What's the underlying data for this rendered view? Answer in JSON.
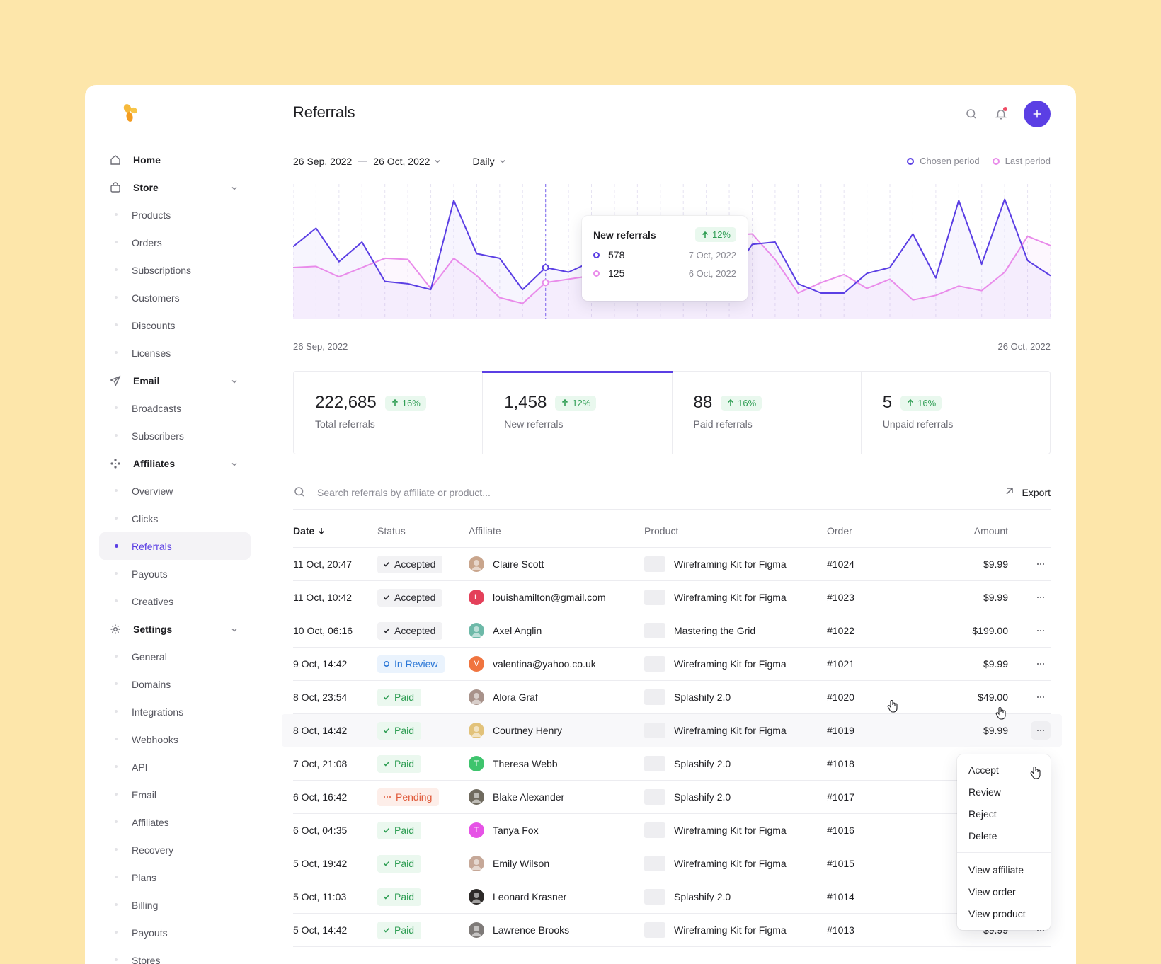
{
  "page": {
    "title": "Referrals"
  },
  "colors": {
    "accent": "#5b3fe4",
    "last_period": "#e98bea",
    "paid": "#2f9e54",
    "review": "#2b77d6",
    "pending": "#e05a3a"
  },
  "sidebar": {
    "groups": [
      {
        "label": "Home",
        "icon": "home-icon",
        "items": []
      },
      {
        "label": "Store",
        "icon": "bag-icon",
        "items": [
          "Products",
          "Orders",
          "Subscriptions",
          "Customers",
          "Discounts",
          "Licenses"
        ]
      },
      {
        "label": "Email",
        "icon": "send-icon",
        "items": [
          "Broadcasts",
          "Subscribers"
        ]
      },
      {
        "label": "Affiliates",
        "icon": "affiliates-icon",
        "items": [
          "Overview",
          "Clicks",
          "Referrals",
          "Payouts",
          "Creatives"
        ]
      },
      {
        "label": "Settings",
        "icon": "gear-icon",
        "items": [
          "General",
          "Domains",
          "Integrations",
          "Webhooks",
          "API",
          "Email",
          "Affiliates",
          "Recovery",
          "Plans",
          "Billing",
          "Payouts",
          "Stores"
        ]
      }
    ],
    "active_item": "Referrals"
  },
  "filters": {
    "date_from": "26 Sep, 2022",
    "date_to": "26 Oct, 2022",
    "interval": "Daily"
  },
  "legend": {
    "chosen": "Chosen period",
    "last": "Last period"
  },
  "chart_data": {
    "type": "line",
    "x_start_label": "26 Sep, 2022",
    "x_end_label": "26 Oct, 2022",
    "series": [
      {
        "name": "Chosen period",
        "values": [
          62,
          78,
          49,
          66,
          32,
          30,
          25,
          102,
          56,
          52,
          25,
          44,
          40,
          49,
          48,
          48,
          54,
          34,
          32,
          34,
          64,
          66,
          30,
          22,
          22,
          39,
          44,
          73,
          35,
          102,
          47,
          103,
          50,
          37
        ]
      },
      {
        "name": "Last period",
        "values": [
          44,
          45,
          36,
          44,
          52,
          51,
          26,
          52,
          37,
          18,
          13,
          31,
          34,
          37,
          55,
          59,
          64,
          52,
          59,
          72,
          73,
          51,
          22,
          31,
          38,
          26,
          34,
          16,
          20,
          28,
          24,
          40,
          71,
          63
        ]
      }
    ]
  },
  "tooltip": {
    "title": "New referrals",
    "change": "12%",
    "rows": [
      {
        "value": "578",
        "date": "7 Oct, 2022"
      },
      {
        "value": "125",
        "date": "6 Oct, 2022"
      }
    ]
  },
  "stats": [
    {
      "value": "222,685",
      "change": "16%",
      "label": "Total referrals"
    },
    {
      "value": "1,458",
      "change": "12%",
      "label": "New referrals"
    },
    {
      "value": "88",
      "change": "16%",
      "label": "Paid referrals"
    },
    {
      "value": "5",
      "change": "16%",
      "label": "Unpaid referrals"
    }
  ],
  "search": {
    "placeholder": "Search referrals by affiliate or product..."
  },
  "export_label": "Export",
  "table": {
    "headers": {
      "date": "Date",
      "status": "Status",
      "affiliate": "Affiliate",
      "product": "Product",
      "order": "Order",
      "amount": "Amount"
    },
    "rows": [
      {
        "date": "11 Oct, 20:47",
        "status": "Accepted",
        "status_type": "accepted",
        "affiliate": "Claire Scott",
        "avatar": "photo",
        "avatar_color": "#c9a58c",
        "product": "Wireframing Kit for Figma",
        "order": "#1024",
        "amount": "$9.99"
      },
      {
        "date": "11 Oct, 10:42",
        "status": "Accepted",
        "status_type": "accepted",
        "affiliate": "louishamilton@gmail.com",
        "avatar": "L",
        "avatar_color": "#e4405a",
        "product": "Wireframing Kit for Figma",
        "order": "#1023",
        "amount": "$9.99"
      },
      {
        "date": "10 Oct, 06:16",
        "status": "Accepted",
        "status_type": "accepted",
        "affiliate": "Axel Anglin",
        "avatar": "photo",
        "avatar_color": "#6db9a8",
        "product": "Mastering the Grid",
        "order": "#1022",
        "amount": "$199.00"
      },
      {
        "date": "9 Oct, 14:42",
        "status": "In Review",
        "status_type": "review",
        "affiliate": "valentina@yahoo.co.uk",
        "avatar": "V",
        "avatar_color": "#f0743f",
        "product": "Wireframing Kit for Figma",
        "order": "#1021",
        "amount": "$9.99"
      },
      {
        "date": "8 Oct, 23:54",
        "status": "Paid",
        "status_type": "paid",
        "affiliate": "Alora Graf",
        "avatar": "photo",
        "avatar_color": "#a8928a",
        "product": "Splashify 2.0",
        "order": "#1020",
        "amount": "$49.00"
      },
      {
        "date": "8 Oct, 14:42",
        "status": "Paid",
        "status_type": "paid",
        "affiliate": "Courtney Henry",
        "avatar": "photo",
        "avatar_color": "#e2c27a",
        "product": "Wireframing Kit for Figma",
        "order": "#1019",
        "amount": "$9.99",
        "hover": true
      },
      {
        "date": "7 Oct, 21:08",
        "status": "Paid",
        "status_type": "paid",
        "affiliate": "Theresa Webb",
        "avatar": "T",
        "avatar_color": "#3ec46d",
        "product": "Splashify 2.0",
        "order": "#1018",
        "amount": ""
      },
      {
        "date": "6 Oct, 16:42",
        "status": "Pending",
        "status_type": "pending",
        "affiliate": "Blake Alexander",
        "avatar": "photo",
        "avatar_color": "#6f6a5e",
        "product": "Splashify 2.0",
        "order": "#1017",
        "amount": ""
      },
      {
        "date": "6 Oct, 04:35",
        "status": "Paid",
        "status_type": "paid",
        "affiliate": "Tanya Fox",
        "avatar": "T",
        "avatar_color": "#e653e6",
        "product": "Wireframing Kit for Figma",
        "order": "#1016",
        "amount": ""
      },
      {
        "date": "5 Oct, 19:42",
        "status": "Paid",
        "status_type": "paid",
        "affiliate": "Emily Wilson",
        "avatar": "photo",
        "avatar_color": "#c6a898",
        "product": "Wireframing Kit for Figma",
        "order": "#1015",
        "amount": ""
      },
      {
        "date": "5 Oct, 11:03",
        "status": "Paid",
        "status_type": "paid",
        "affiliate": "Leonard Krasner",
        "avatar": "photo",
        "avatar_color": "#2d2a28",
        "product": "Splashify 2.0",
        "order": "#1014",
        "amount": ""
      },
      {
        "date": "5 Oct, 14:42",
        "status": "Paid",
        "status_type": "paid",
        "affiliate": "Lawrence Brooks",
        "avatar": "photo",
        "avatar_color": "#7e7a78",
        "product": "Wireframing Kit for Figma",
        "order": "#1013",
        "amount": "$9.99"
      }
    ]
  },
  "row_menu": {
    "items": [
      "Accept",
      "Review",
      "Reject",
      "Delete"
    ],
    "links": [
      "View affiliate",
      "View order",
      "View product"
    ]
  }
}
